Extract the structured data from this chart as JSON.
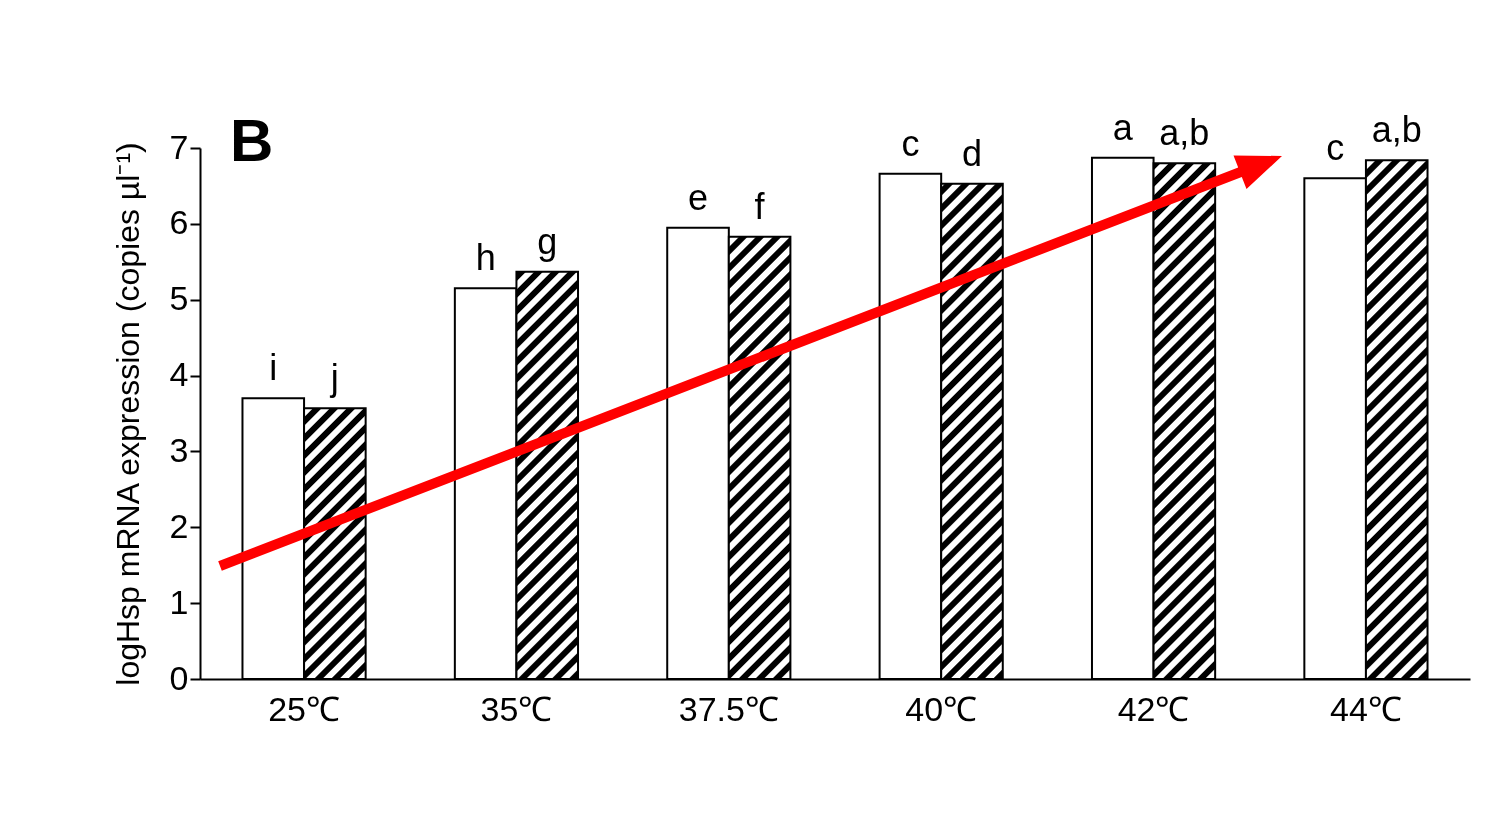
{
  "chart_data": {
    "type": "bar",
    "ylabel": "logHsp mRNA expression (copies µl⁻¹)",
    "categories": [
      "25℃",
      "35℃",
      "37.5℃",
      "40℃",
      "42℃",
      "44℃"
    ],
    "series": [
      {
        "color": "#ffffff",
        "values": [
          3.7,
          5.15,
          5.95,
          6.66,
          6.87,
          6.6
        ]
      },
      {
        "color": "#000000",
        "values": [
          3.57,
          5.37,
          5.83,
          6.53,
          6.8,
          6.84
        ]
      }
    ],
    "ylim": [
      0,
      7
    ],
    "yticks": [
      0,
      1,
      2,
      3,
      4,
      5,
      6,
      7
    ],
    "grid": false,
    "annotations": [
      "B",
      {
        "text": "i",
        "x": "25℃",
        "y": 3.7
      },
      {
        "text": "j",
        "x": "25℃",
        "y": 3.57
      },
      {
        "text": "h",
        "x": "35℃",
        "y": 5.15
      },
      {
        "text": "g",
        "x": "35℃",
        "y": 5.37
      },
      {
        "text": "e",
        "x": "37.5℃",
        "y": 5.95
      },
      {
        "text": "f",
        "x": "37.5℃",
        "y": 5.83
      },
      {
        "text": "c",
        "x": "40℃",
        "y": 6.66
      },
      {
        "text": "d",
        "x": "40℃",
        "y": 6.53
      },
      {
        "text": "a",
        "x": "42℃",
        "y": 6.87
      },
      {
        "text": "a,b",
        "x": "42℃",
        "y": 6.8
      },
      {
        "text": "c",
        "x": "44℃",
        "y": 6.6
      },
      {
        "text": "a,b",
        "x": "44℃",
        "y": 6.84
      }
    ]
  }
}
